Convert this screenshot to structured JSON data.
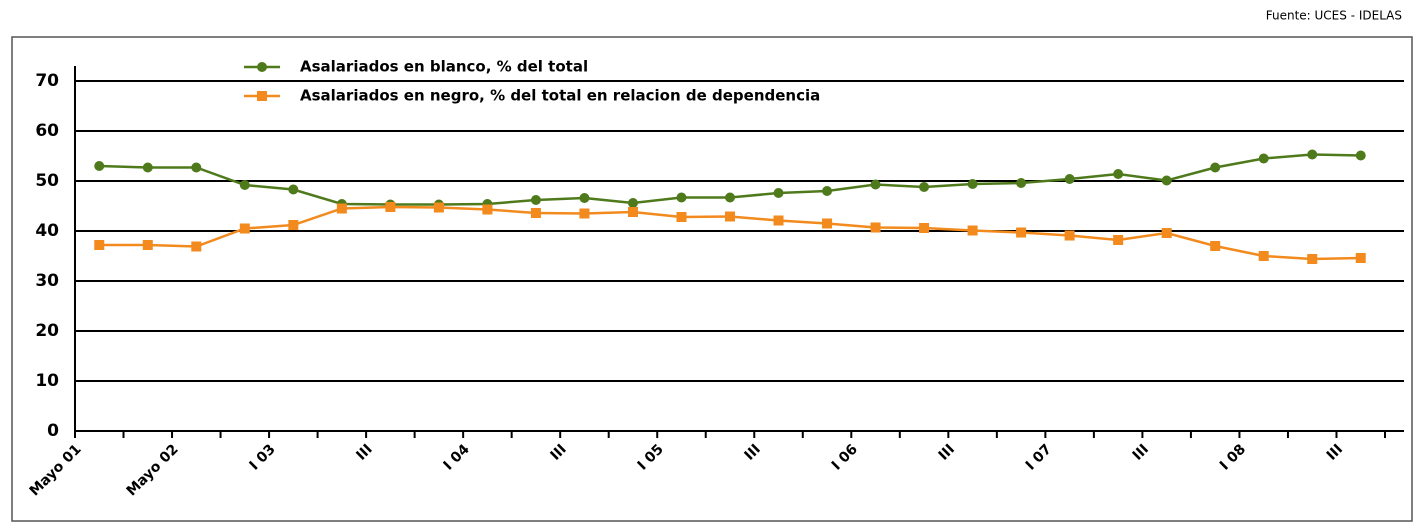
{
  "chart_data": {
    "type": "line",
    "source": "Fuente: UCES - IDELAS",
    "categories": [
      "Mayo 01",
      null,
      "Mayo 02",
      null,
      "I 03",
      null,
      "III",
      null,
      "I 04",
      null,
      "III",
      null,
      "I 05",
      null,
      "III",
      null,
      "I 06",
      null,
      "III",
      null,
      "I 07",
      null,
      "III",
      null,
      "I 08",
      null,
      "III"
    ],
    "series": [
      {
        "name": "Asalariados en blanco, % del total",
        "color": "#4f7a1c",
        "marker": "circle",
        "values": [
          53,
          52.7,
          52.7,
          49.2,
          48.3,
          45.4,
          45.3,
          45.3,
          45.4,
          46.2,
          46.6,
          45.6,
          46.7,
          46.7,
          47.6,
          48,
          49.3,
          48.8,
          49.4,
          49.6,
          50.4,
          51.4,
          50.1,
          52.7,
          54.5,
          55.3,
          55.1
        ]
      },
      {
        "name": "Asalariados en negro, % del total en relacion de dependencia",
        "color": "#f28a1e",
        "marker": "square",
        "values": [
          37.2,
          37.2,
          36.9,
          40.5,
          41.2,
          44.5,
          44.8,
          44.7,
          44.3,
          43.6,
          43.5,
          43.8,
          42.8,
          42.9,
          42.1,
          41.5,
          40.7,
          40.6,
          40.1,
          39.7,
          39.1,
          38.2,
          39.6,
          37,
          35,
          34.4,
          34.6
        ]
      }
    ],
    "ylim": [
      0,
      70
    ],
    "yticks": [
      0,
      10,
      20,
      30,
      40,
      50,
      60,
      70
    ],
    "grid": true
  }
}
